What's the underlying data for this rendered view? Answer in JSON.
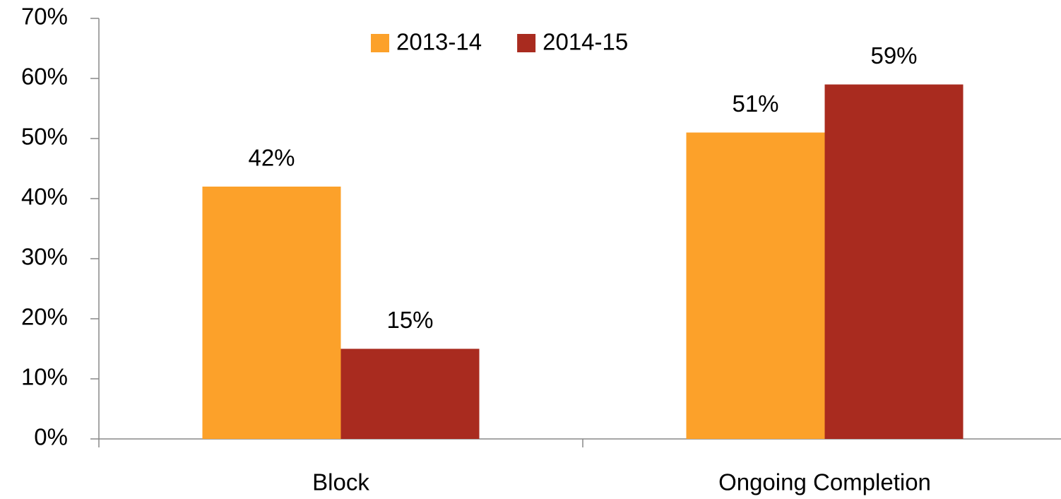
{
  "chart_data": {
    "type": "bar",
    "categories": [
      "Block",
      "Ongoing Completion"
    ],
    "series": [
      {
        "name": "2013-14",
        "color": "#fca12a",
        "values": [
          42,
          51
        ],
        "value_labels": [
          "42%",
          "51%"
        ]
      },
      {
        "name": "2014-15",
        "color": "#a92b1f",
        "values": [
          15,
          59
        ],
        "value_labels": [
          "15%",
          "59%"
        ]
      }
    ],
    "ylim": [
      0,
      70
    ],
    "yticks": [
      {
        "value": 0,
        "label": "0%"
      },
      {
        "value": 10,
        "label": "10%"
      },
      {
        "value": 20,
        "label": "20%"
      },
      {
        "value": 30,
        "label": "30%"
      },
      {
        "value": 40,
        "label": "40%"
      },
      {
        "value": 50,
        "label": "50%"
      },
      {
        "value": 60,
        "label": "60%"
      },
      {
        "value": 70,
        "label": "70%"
      }
    ],
    "grid": false,
    "legend": "top"
  }
}
